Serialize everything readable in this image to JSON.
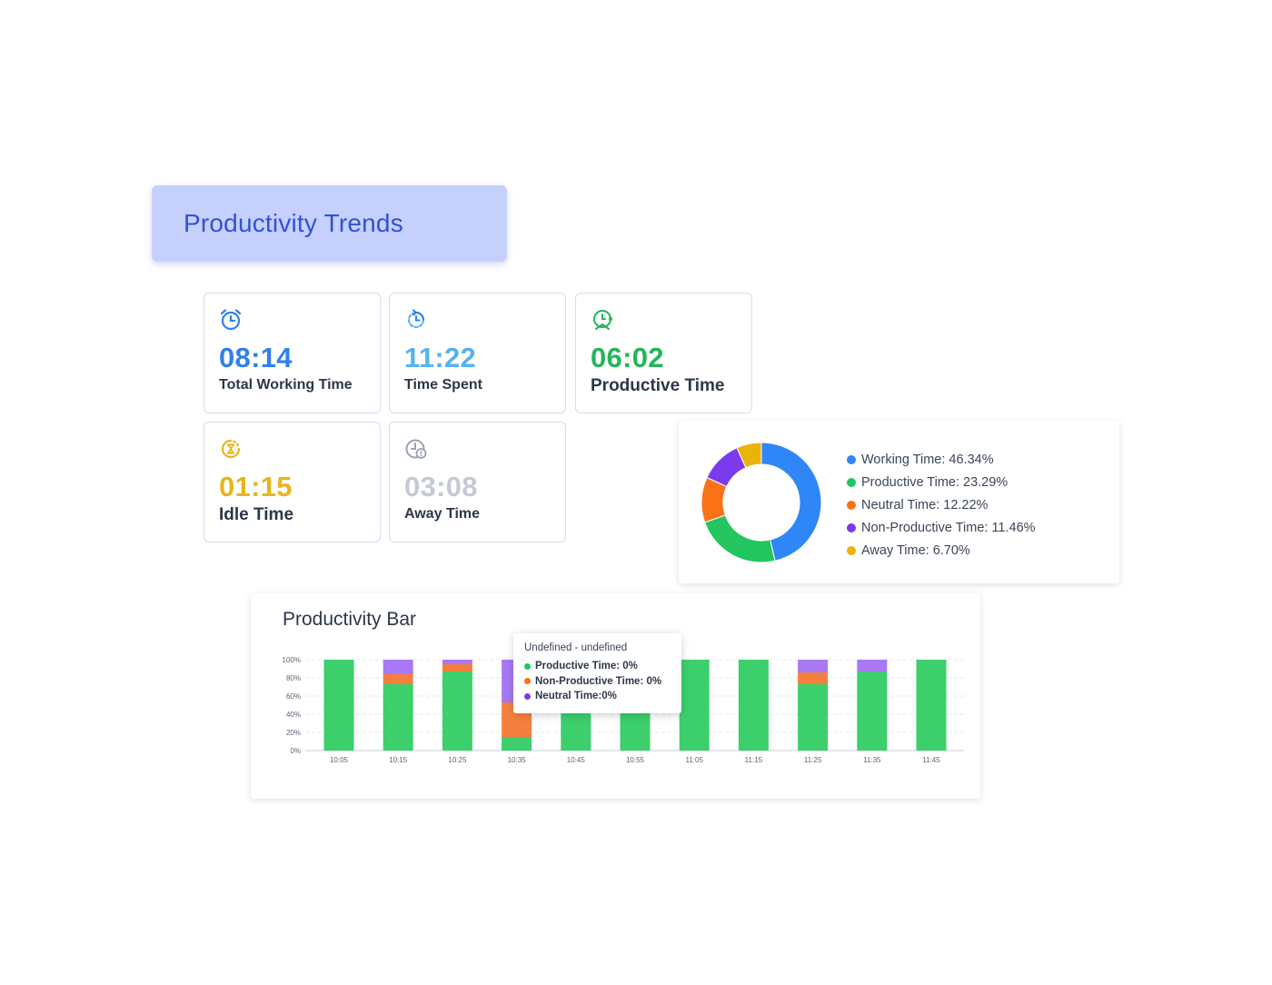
{
  "header": {
    "title": "Productivity Trends"
  },
  "stats": {
    "total_working": {
      "value": "08:14",
      "label": "Total Working Time",
      "color": "#2f80ed",
      "icon": "alarm-clock-icon"
    },
    "time_spent": {
      "value": "11:22",
      "label": "Time Spent",
      "color": "#56b3f0",
      "icon": "clock-refresh-icon"
    },
    "productive": {
      "value": "06:02",
      "label": "Productive Time",
      "color": "#22b55a",
      "icon": "productivity-clock-icon"
    },
    "idle": {
      "value": "01:15",
      "label": "Idle Time",
      "color": "#e8b51c",
      "icon": "hourglass-icon"
    },
    "away": {
      "value": "03:08",
      "label": "Away Time",
      "color": "#c4c9d8",
      "icon": "away-clock-icon"
    }
  },
  "donut": {
    "legend": [
      {
        "label": "Working Time: 46.34%",
        "value": 46.34,
        "color": "#2f86f6"
      },
      {
        "label": "Productive Time: 23.29%",
        "value": 23.29,
        "color": "#22c55e"
      },
      {
        "label": "Neutral Time: 12.22%",
        "value": 12.22,
        "color": "#f97316"
      },
      {
        "label": "Non-Productive Time: 11.46%",
        "value": 11.46,
        "color": "#7c3aed"
      },
      {
        "label": "Away Time: 6.70%",
        "value": 6.7,
        "color": "#eab308"
      }
    ]
  },
  "bar_panel": {
    "title": "Productivity Bar"
  },
  "tooltip": {
    "header": "Undefined - undefined",
    "rows": [
      {
        "label": "Productive Time: 0%",
        "color": "#22c55e"
      },
      {
        "label": "Non-Productive Time: 0%",
        "color": "#f97316"
      },
      {
        "label": "Neutral Time:0%",
        "color": "#7c3aed"
      }
    ]
  },
  "chart_data": {
    "type": "bar",
    "stacked": true,
    "categories": [
      "10:05",
      "10:15",
      "10:25",
      "10:35",
      "10:45",
      "10:55",
      "11:05",
      "11:15",
      "11:25",
      "11:35",
      "11:45"
    ],
    "yticks": [
      "0%",
      "20%",
      "40%",
      "60%",
      "80%",
      "100%"
    ],
    "ylim": [
      0,
      100
    ],
    "grid": true,
    "series": [
      {
        "values": [
          100,
          73,
          87,
          15,
          100,
          100,
          100,
          100,
          73,
          87,
          100
        ],
        "color": "#3ccf6c"
      },
      {
        "values": [
          0,
          11,
          8,
          38,
          0,
          0,
          0,
          0,
          13,
          0,
          0
        ],
        "color": "#f5803e"
      },
      {
        "values": [
          0,
          16,
          5,
          47,
          0,
          0,
          0,
          0,
          14,
          13,
          0
        ],
        "color": "#a878f5"
      }
    ]
  }
}
